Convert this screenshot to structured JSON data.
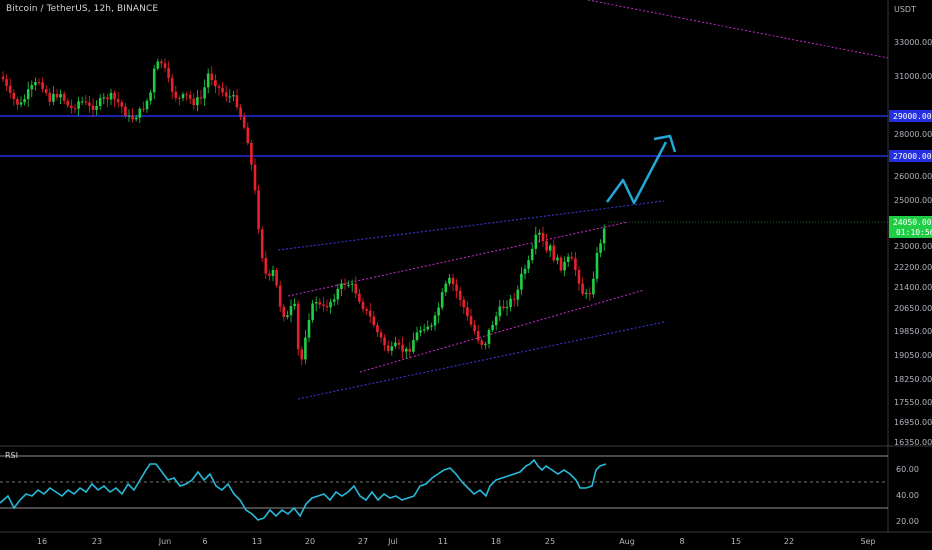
{
  "header": {
    "title": "Bitcoin / TetherUS, 12h, BINANCE"
  },
  "price_axis": {
    "currency": "USDT",
    "ticks": [
      "33000.00",
      "31000.00",
      "28000.00",
      "26000.00",
      "25000.00",
      "23000.00",
      "22200.00",
      "21400.00",
      "20650.00",
      "19850.00",
      "19050.00",
      "18250.00",
      "17550.00",
      "16950.00",
      "16350.00"
    ],
    "level_labels": [
      "29000.00",
      "27000.00"
    ],
    "current_price": "24050.00",
    "countdown": "01:10:56"
  },
  "rsi": {
    "label": "RSI",
    "ticks": [
      "60.00",
      "40.00",
      "20.00"
    ]
  },
  "time_axis": {
    "ticks": [
      "16",
      "23",
      "Jun",
      "6",
      "13",
      "20",
      "27",
      "Jul",
      "11",
      "18",
      "25",
      "Aug",
      "8",
      "15",
      "22",
      "Sep"
    ]
  },
  "colors": {
    "up": "#26a69a_like_green",
    "up_hex": "#1fce45",
    "down_hex": "#e8212c",
    "level_line": "#2430e0",
    "rsi_line": "#2ab8d8",
    "arrow": "#22a8d8",
    "channel_outer": "#3b3be8",
    "channel_inner": "#d22ad6"
  }
}
